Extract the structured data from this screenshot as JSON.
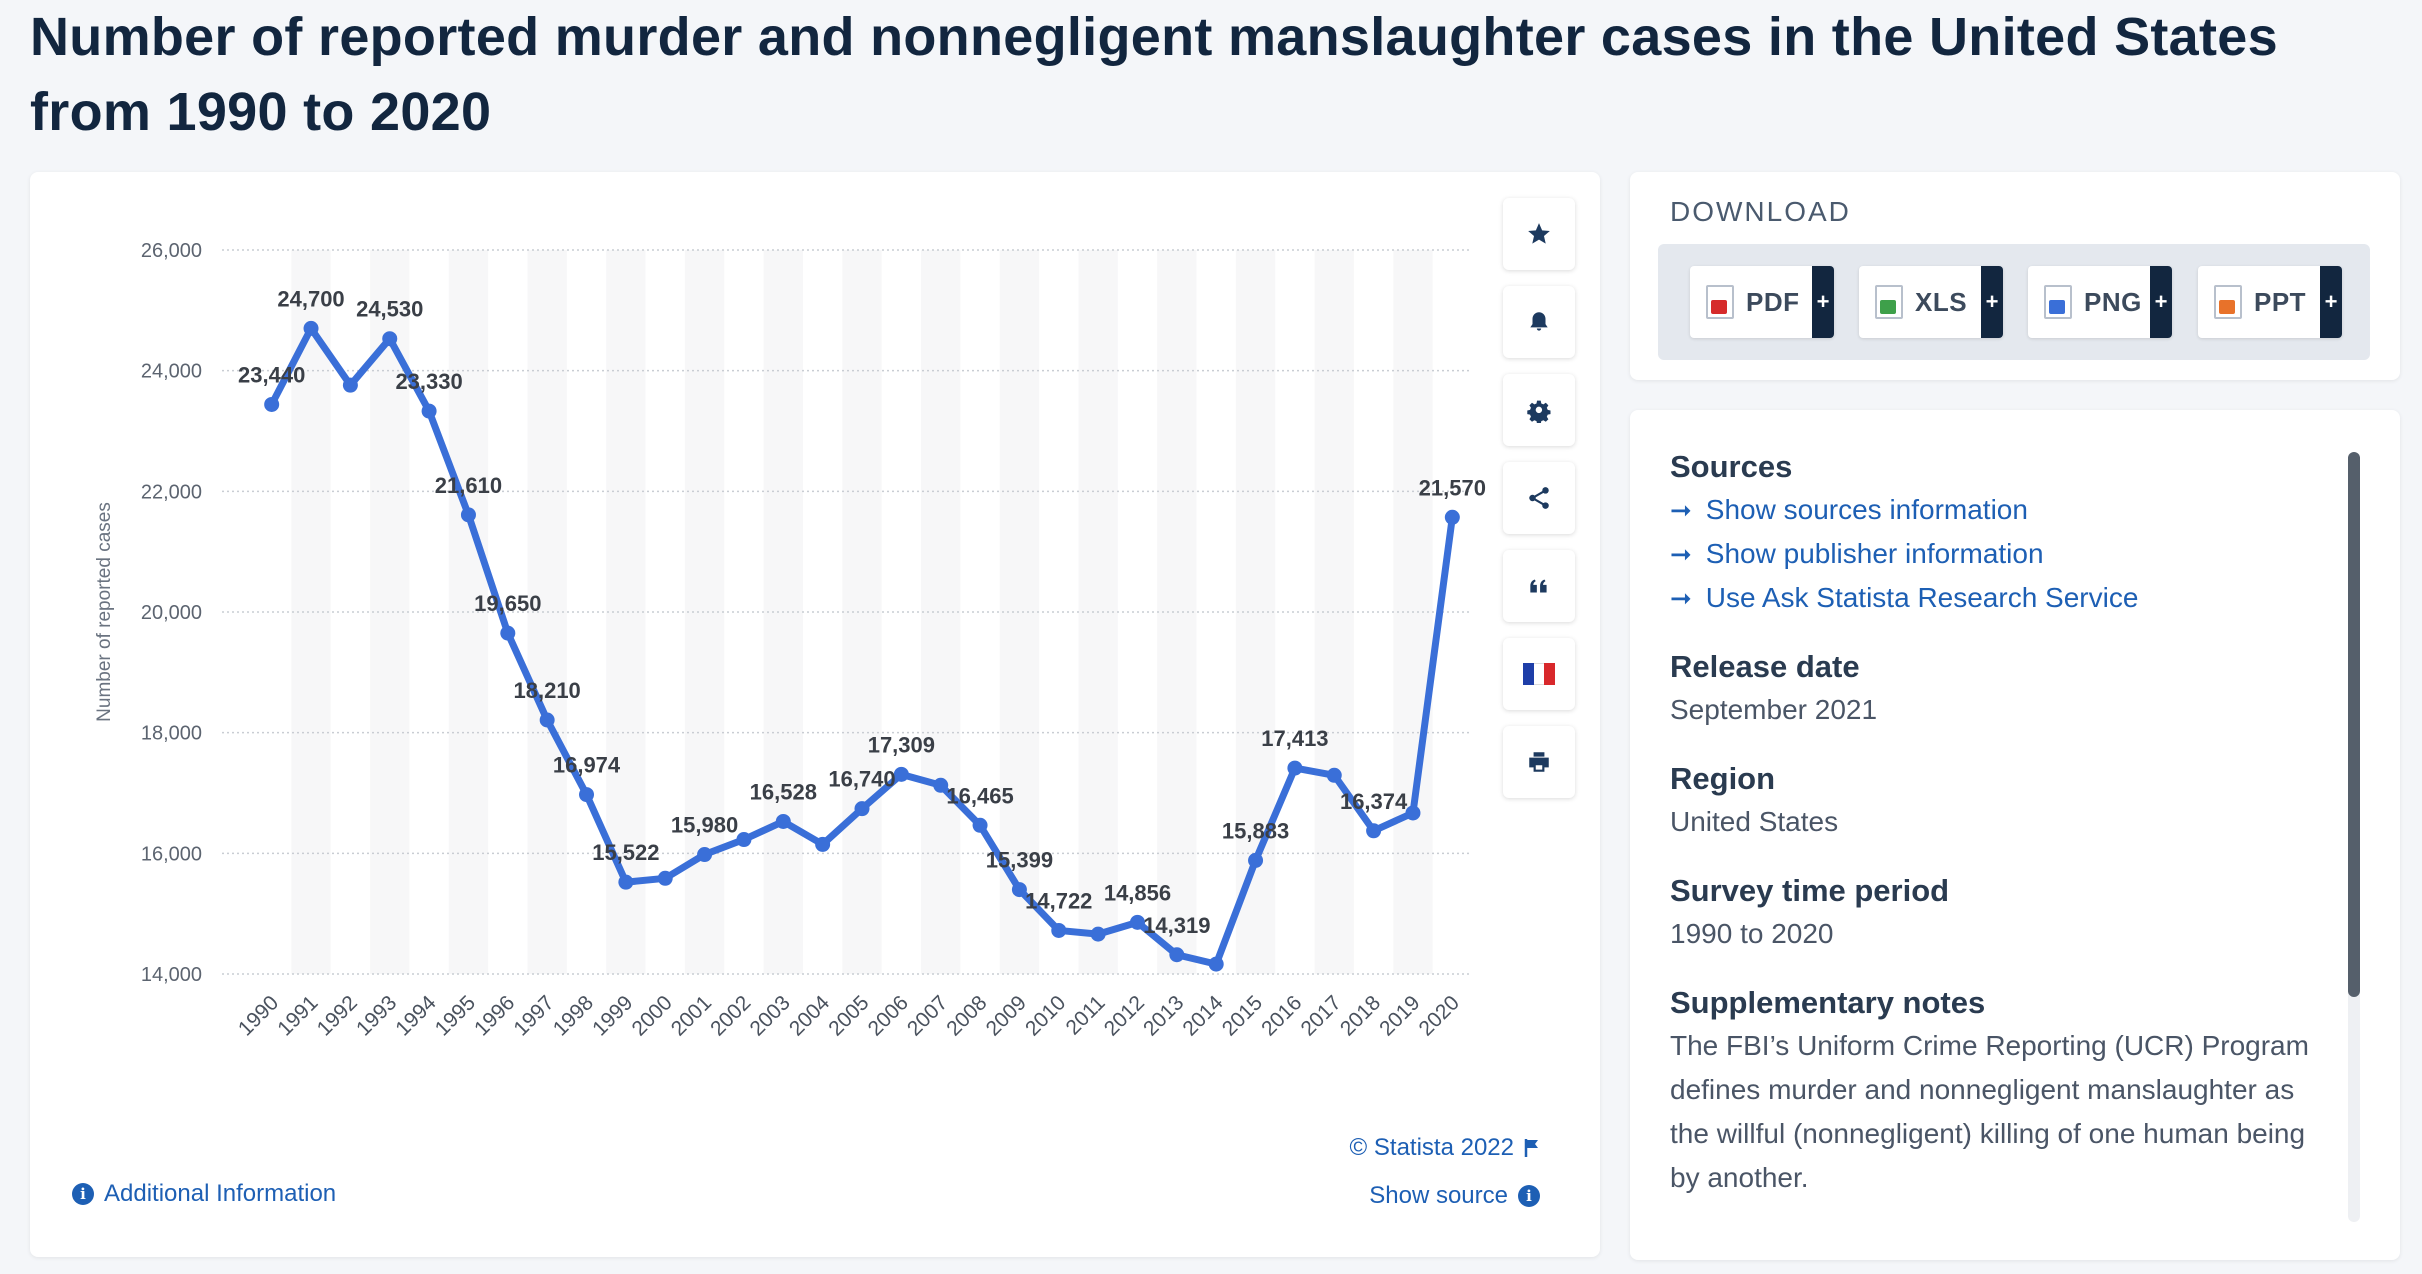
{
  "title": "Number of reported murder and nonnegligent manslaughter cases in the United States from 1990 to 2020",
  "chart_data": {
    "type": "line",
    "title": "Number of reported murder and nonnegligent manslaughter cases in the United States from 1990 to 2020",
    "ylabel": "Number of reported cases",
    "xlabel": "",
    "ylim": [
      14000,
      26000
    ],
    "yticks": [
      14000,
      16000,
      18000,
      20000,
      22000,
      24000,
      26000
    ],
    "ytick_labels": [
      "14,000",
      "16,000",
      "18,000",
      "20,000",
      "22,000",
      "24,000",
      "26,000"
    ],
    "grid": true,
    "categories": [
      "1990",
      "1991",
      "1992",
      "1993",
      "1994",
      "1995",
      "1996",
      "1997",
      "1998",
      "1999",
      "2000",
      "2001",
      "2002",
      "2003",
      "2004",
      "2005",
      "2006",
      "2007",
      "2008",
      "2009",
      "2010",
      "2011",
      "2012",
      "2013",
      "2014",
      "2015",
      "2016",
      "2017",
      "2018",
      "2019",
      "2020"
    ],
    "values": [
      23440,
      24700,
      23760,
      24530,
      23330,
      21610,
      19650,
      18210,
      16974,
      15522,
      15586,
      15980,
      16229,
      16528,
      16148,
      16740,
      17309,
      17128,
      16465,
      15399,
      14722,
      14661,
      14856,
      14319,
      14164,
      15883,
      17413,
      17294,
      16374,
      16669,
      21570
    ],
    "data_labels": [
      "23,440",
      "24,700",
      "",
      "24,530",
      "23,330",
      "21,610",
      "19,650",
      "18,210",
      "16,974",
      "15,522",
      "",
      "15,980",
      "",
      "16,528",
      "",
      "16,740",
      "17,309",
      "",
      "16,465",
      "15,399",
      "14,722",
      "",
      "14,856",
      "14,319",
      "",
      "15,883",
      "17,413",
      "",
      "16,374",
      "",
      "21,570"
    ],
    "color": "#3a6fd8"
  },
  "tools": {
    "star": "star-icon",
    "bell": "bell-icon",
    "gear": "gear-icon",
    "share": "share-icon",
    "quote": "quote-icon",
    "flag": "french-flag-icon",
    "print": "print-icon"
  },
  "footer": {
    "copyright": "© Statista 2022",
    "show_source": "Show source",
    "additional_info": "Additional Information"
  },
  "download": {
    "title": "DOWNLOAD",
    "buttons": [
      {
        "label": "PDF",
        "color": "#d62b2b"
      },
      {
        "label": "XLS",
        "color": "#3ea04a"
      },
      {
        "label": "PNG",
        "color": "#3a6fd8"
      },
      {
        "label": "PPT",
        "color": "#e8722a"
      }
    ],
    "plus": "+"
  },
  "info": {
    "sources_head": "Sources",
    "links": [
      "Show sources information",
      "Show publisher information",
      "Use Ask Statista Research Service"
    ],
    "release_head": "Release date",
    "release_val": "September 2021",
    "region_head": "Region",
    "region_val": "United States",
    "period_head": "Survey time period",
    "period_val": "1990 to 2020",
    "notes_head": "Supplementary notes",
    "notes_val": "The FBI’s Uniform Crime Reporting (UCR) Program defines murder and nonnegligent manslaughter as the willful (nonnegligent) killing of one human being by another."
  }
}
